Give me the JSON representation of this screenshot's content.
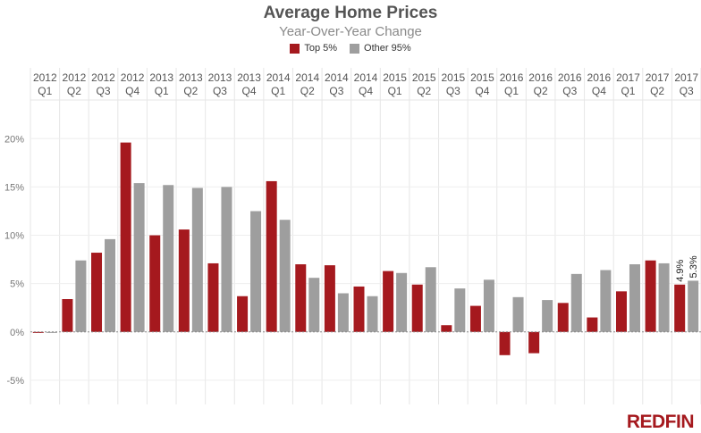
{
  "header": {
    "title": "Average Home Prices",
    "subtitle": "Year-Over-Year Change"
  },
  "legend": {
    "items": [
      {
        "label": "Top 5%",
        "color": "#a5191e"
      },
      {
        "label": "Other 95%",
        "color": "#9e9e9e"
      }
    ],
    "position": "top-center"
  },
  "brand": {
    "logo_text": "REDFIN"
  },
  "chart_data": {
    "type": "bar",
    "title": "Average Home Prices",
    "subtitle": "Year-Over-Year Change",
    "categories": [
      {
        "year": "2012",
        "quarter": "Q1"
      },
      {
        "year": "2012",
        "quarter": "Q2"
      },
      {
        "year": "2012",
        "quarter": "Q3"
      },
      {
        "year": "2012",
        "quarter": "Q4"
      },
      {
        "year": "2013",
        "quarter": "Q1"
      },
      {
        "year": "2013",
        "quarter": "Q2"
      },
      {
        "year": "2013",
        "quarter": "Q3"
      },
      {
        "year": "2013",
        "quarter": "Q4"
      },
      {
        "year": "2014",
        "quarter": "Q1"
      },
      {
        "year": "2014",
        "quarter": "Q2"
      },
      {
        "year": "2014",
        "quarter": "Q3"
      },
      {
        "year": "2014",
        "quarter": "Q4"
      },
      {
        "year": "2015",
        "quarter": "Q1"
      },
      {
        "year": "2015",
        "quarter": "Q2"
      },
      {
        "year": "2015",
        "quarter": "Q3"
      },
      {
        "year": "2015",
        "quarter": "Q4"
      },
      {
        "year": "2016",
        "quarter": "Q1"
      },
      {
        "year": "2016",
        "quarter": "Q2"
      },
      {
        "year": "2016",
        "quarter": "Q3"
      },
      {
        "year": "2016",
        "quarter": "Q4"
      },
      {
        "year": "2017",
        "quarter": "Q1"
      },
      {
        "year": "2017",
        "quarter": "Q2"
      },
      {
        "year": "2017",
        "quarter": "Q3"
      }
    ],
    "series": [
      {
        "name": "Top 5%",
        "color": "#a5191e",
        "values": [
          -0.1,
          3.4,
          8.2,
          19.6,
          10.0,
          10.6,
          7.1,
          3.7,
          15.6,
          7.0,
          6.9,
          4.7,
          6.3,
          4.9,
          0.7,
          2.7,
          -2.4,
          -2.2,
          3.0,
          1.5,
          4.2,
          7.4,
          4.9
        ]
      },
      {
        "name": "Other 95%",
        "color": "#9e9e9e",
        "values": [
          -0.1,
          7.4,
          9.6,
          15.4,
          15.2,
          14.9,
          15.0,
          12.5,
          11.6,
          5.6,
          4.0,
          3.7,
          6.1,
          6.7,
          4.5,
          5.4,
          3.6,
          3.3,
          6.0,
          6.4,
          7.0,
          7.1,
          5.3
        ]
      }
    ],
    "data_labels": [
      {
        "series": "Top 5%",
        "category_index": 22,
        "text": "4.9%"
      },
      {
        "series": "Other 95%",
        "category_index": 22,
        "text": "5.3%"
      }
    ],
    "yticks": [
      -5,
      0,
      5,
      10,
      15,
      20
    ],
    "ytick_suffix": "%",
    "ylim": [
      -7.5,
      24
    ],
    "xaxis_position": "top",
    "grid": true
  }
}
